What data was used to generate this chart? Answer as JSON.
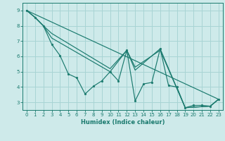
{
  "bg_color": "#ceeaea",
  "grid_color": "#a8d4d4",
  "line_color": "#1a7a6e",
  "xlabel": "Humidex (Indice chaleur)",
  "xlim": [
    -0.5,
    23.5
  ],
  "ylim": [
    2.5,
    9.5
  ],
  "yticks": [
    3,
    4,
    5,
    6,
    7,
    8,
    9
  ],
  "xticks": [
    0,
    1,
    2,
    3,
    4,
    5,
    6,
    7,
    8,
    9,
    10,
    11,
    12,
    13,
    14,
    15,
    16,
    17,
    18,
    19,
    20,
    21,
    22,
    23
  ],
  "series_main": {
    "x": [
      0,
      1,
      2,
      3,
      4,
      5,
      6,
      7,
      8,
      9,
      10,
      11,
      12,
      13,
      14,
      15,
      16,
      17,
      18,
      19,
      20,
      21,
      22,
      23
    ],
    "y": [
      9.0,
      8.55,
      8.0,
      6.8,
      6.05,
      4.85,
      4.6,
      3.55,
      4.05,
      4.4,
      5.0,
      4.4,
      6.4,
      3.1,
      4.2,
      4.3,
      6.5,
      4.1,
      4.0,
      2.65,
      2.8,
      2.8,
      2.75,
      3.2
    ]
  },
  "series_lines": [
    {
      "x": [
        0,
        1,
        2,
        3,
        10,
        12,
        13,
        16,
        19,
        22,
        23
      ],
      "y": [
        9.0,
        8.55,
        8.0,
        7.5,
        5.2,
        6.4,
        5.1,
        6.5,
        2.65,
        2.75,
        3.2
      ]
    },
    {
      "x": [
        0,
        1,
        2,
        3,
        10,
        12,
        13,
        16,
        19,
        22,
        23
      ],
      "y": [
        9.0,
        8.55,
        8.0,
        7.2,
        5.0,
        6.4,
        5.3,
        6.4,
        2.65,
        2.75,
        3.2
      ]
    },
    {
      "x": [
        0,
        23
      ],
      "y": [
        9.0,
        3.2
      ]
    }
  ]
}
